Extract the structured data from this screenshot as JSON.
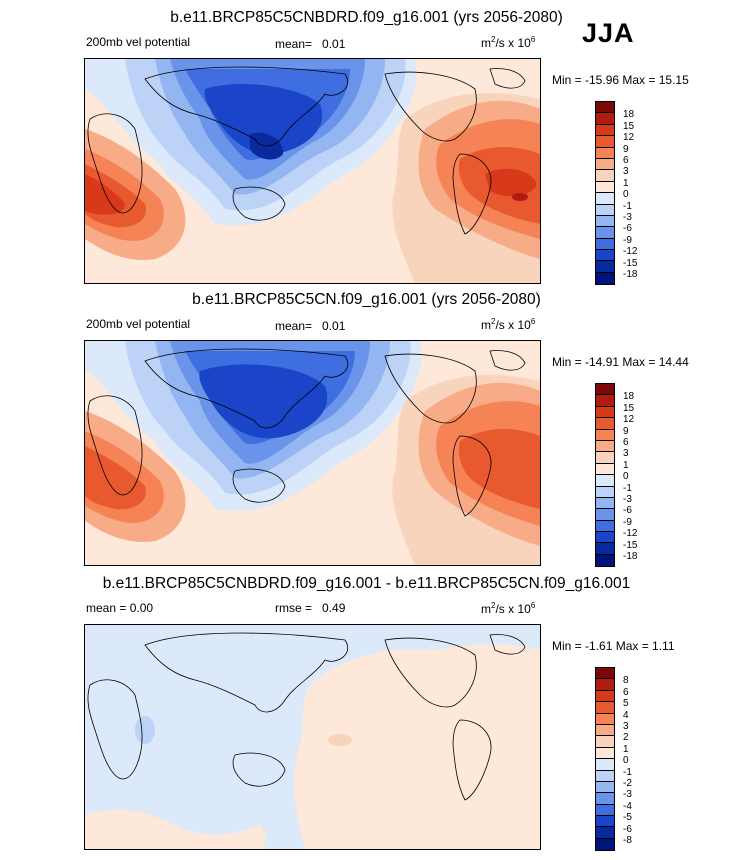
{
  "season": "JJA",
  "panels": [
    {
      "title": "b.e11.BRCP85C5CNBDRD.f09_g16.001 (yrs 2056-2080)",
      "left_label": "200mb vel potential",
      "mean_label": "mean=",
      "mean_value": "0.01",
      "unit_base": "m",
      "unit_mid": "/s x 10",
      "minmax": "Min = -15.96 Max =  15.15",
      "ticks": [
        "18",
        "15",
        "12",
        "9",
        "6",
        "3",
        "1",
        "0",
        "-1",
        "-3",
        "-6",
        "-9",
        "-12",
        "-15",
        "-18"
      ]
    },
    {
      "title": "b.e11.BRCP85C5CN.f09_g16.001 (yrs 2056-2080)",
      "left_label": "200mb vel potential",
      "mean_label": "mean=",
      "mean_value": "0.01",
      "unit_base": "m",
      "unit_mid": "/s x 10",
      "minmax": "Min = -14.91 Max =  14.44",
      "ticks": [
        "18",
        "15",
        "12",
        "9",
        "6",
        "3",
        "1",
        "0",
        "-1",
        "-3",
        "-6",
        "-9",
        "-12",
        "-15",
        "-18"
      ]
    },
    {
      "title": "b.e11.BRCP85C5CNBDRD.f09_g16.001 - b.e11.BRCP85C5CN.f09_g16.001",
      "left_label": "mean =   0.00",
      "mean_label": "rmse =",
      "mean_value": "0.49",
      "unit_base": "m",
      "unit_mid": "/s x 10",
      "minmax": "Min = -1.61 Max =  1.11",
      "ticks": [
        "8",
        "6",
        "5",
        "4",
        "3",
        "2",
        "1",
        "0",
        "-1",
        "-2",
        "-3",
        "-4",
        "-5",
        "-6",
        "-8"
      ]
    }
  ],
  "colors": [
    "#7a0a0a",
    "#b01d10",
    "#d8391b",
    "#e8592f",
    "#f58355",
    "#f7ab86",
    "#f9d4bc",
    "#fde8da",
    "#dce9fb",
    "#bcd2f7",
    "#93b5f1",
    "#6a94ea",
    "#3f6ee0",
    "#1b45c8",
    "#082a9c",
    "#00137a"
  ],
  "diff_colors": [
    "#7a0a0a",
    "#b01d10",
    "#d8391b",
    "#e8592f",
    "#f58355",
    "#f7ab86",
    "#f9d4bc",
    "#fde8da",
    "#dce9fb",
    "#bcd2f7",
    "#93b5f1",
    "#6a94ea",
    "#3f6ee0",
    "#1b45c8",
    "#082a9c",
    "#00137a"
  ]
}
